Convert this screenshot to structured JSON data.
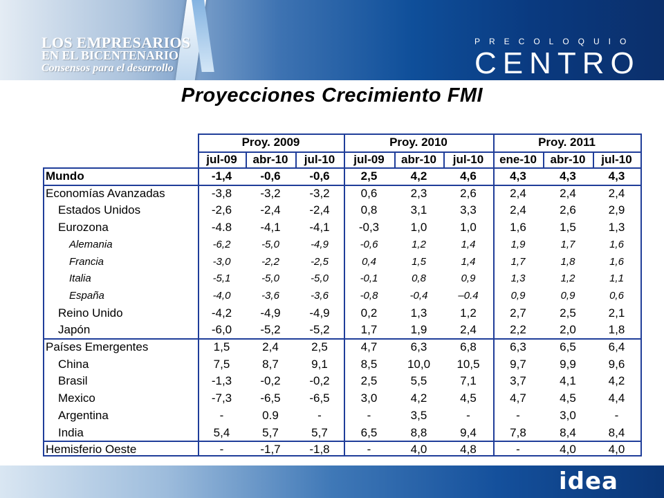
{
  "logos": {
    "left": {
      "line1": "LOS EMPRESARIOS",
      "line2": "EN EL BICENTENARIO",
      "line3": "Consensos para el desarrollo"
    },
    "right": {
      "small": "PRECOLOQUIO",
      "big": "CENTRO"
    },
    "footer": "idea"
  },
  "title": "Proyecciones Crecimiento FMI",
  "table": {
    "groups": [
      {
        "label": "Proy. 2009",
        "cols": [
          "jul-09",
          "abr-10",
          "jul-10"
        ]
      },
      {
        "label": "Proy. 2010",
        "cols": [
          "jul-09",
          "abr-10",
          "jul-10"
        ]
      },
      {
        "label": "Proy. 2011",
        "cols": [
          "ene-10",
          "abr-10",
          "jul-10"
        ]
      }
    ],
    "rows": [
      {
        "label": "Mundo",
        "style": "bold",
        "values": [
          "-1,4",
          "-0,6",
          "-0,6",
          "2,5",
          "4,2",
          "4,6",
          "4,3",
          "4,3",
          "4,3"
        ]
      },
      {
        "label": "Economías Avanzadas",
        "style": "normal",
        "values": [
          "-3,8",
          "-3,2",
          "-3,2",
          "0,6",
          "2,3",
          "2,6",
          "2,4",
          "2,4",
          "2,4"
        ]
      },
      {
        "label": "Estados Unidos",
        "style": "normal",
        "values": [
          "-2,6",
          "-2,4",
          "-2,4",
          "0,8",
          "3,1",
          "3,3",
          "2,4",
          "2,6",
          "2,9"
        ]
      },
      {
        "label": "Eurozona",
        "style": "normal",
        "values": [
          "-4.8",
          "-4,1",
          "-4,1",
          "-0,3",
          "1,0",
          "1,0",
          "1,6",
          "1,5",
          "1,3"
        ]
      },
      {
        "label": "Alemania",
        "style": "italic",
        "values": [
          "-6,2",
          "-5,0",
          "-4,9",
          "-0,6",
          "1,2",
          "1,4",
          "1,9",
          "1,7",
          "1,6"
        ]
      },
      {
        "label": "Francia",
        "style": "italic",
        "values": [
          "-3,0",
          "-2,2",
          "-2,5",
          "0,4",
          "1,5",
          "1,4",
          "1,7",
          "1,8",
          "1,6"
        ]
      },
      {
        "label": "Italia",
        "style": "italic",
        "values": [
          "-5,1",
          "-5,0",
          "-5,0",
          "-0,1",
          "0,8",
          "0,9",
          "1,3",
          "1,2",
          "1,1"
        ]
      },
      {
        "label": "España",
        "style": "italic",
        "values": [
          "-4,0",
          "-3,6",
          "-3,6",
          "-0,8",
          "-0,4",
          "–0.4",
          "0,9",
          "0,9",
          "0,6"
        ]
      },
      {
        "label": "Reino Unido",
        "style": "normal",
        "values": [
          "-4,2",
          "-4,9",
          "-4,9",
          "0,2",
          "1,3",
          "1,2",
          "2,7",
          "2,5",
          "2,1"
        ]
      },
      {
        "label": "Japón",
        "style": "normal",
        "values": [
          "-6,0",
          "-5,2",
          "-5,2",
          "1,7",
          "1,9",
          "2,4",
          "2,2",
          "2,0",
          "1,8"
        ]
      },
      {
        "label": "Países Emergentes",
        "style": "normal",
        "values": [
          "1,5",
          "2,4",
          "2,5",
          "4,7",
          "6,3",
          "6,8",
          "6,3",
          "6,5",
          "6,4"
        ]
      },
      {
        "label": "China",
        "style": "normal",
        "values": [
          "7,5",
          "8,7",
          "9,1",
          "8,5",
          "10,0",
          "10,5",
          "9,7",
          "9,9",
          "9,6"
        ]
      },
      {
        "label": "Brasil",
        "style": "normal",
        "values": [
          "-1,3",
          "-0,2",
          "-0,2",
          "2,5",
          "5,5",
          "7,1",
          "3,7",
          "4,1",
          "4,2"
        ]
      },
      {
        "label": "Mexico",
        "style": "normal",
        "values": [
          "-7,3",
          "-6,5",
          "-6,5",
          "3,0",
          "4,2",
          "4,5",
          "4,7",
          "4,5",
          "4,4"
        ]
      },
      {
        "label": "Argentina",
        "style": "normal",
        "values": [
          "-",
          "0.9",
          "-",
          "-",
          "3,5",
          "-",
          "-",
          "3,0",
          "-"
        ]
      },
      {
        "label": "India",
        "style": "normal",
        "values": [
          "5,4",
          "5,7",
          "5,7",
          "6,5",
          "8,8",
          "9,4",
          "7,8",
          "8,4",
          "8,4"
        ]
      },
      {
        "label": "Hemisferio Oeste",
        "style": "normal",
        "values": [
          "-",
          "-1,7",
          "-1,8",
          "-",
          "4,0",
          "4,8",
          "-",
          "4,0",
          "4,0"
        ]
      }
    ]
  }
}
